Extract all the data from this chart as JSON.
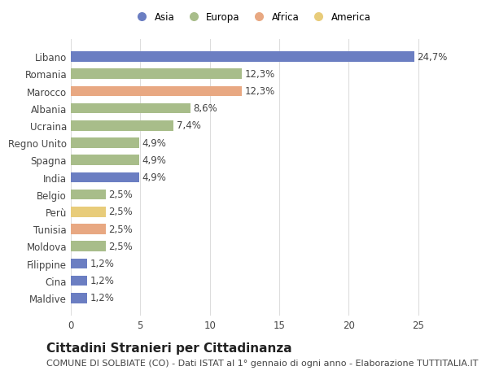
{
  "categories": [
    "Libano",
    "Romania",
    "Marocco",
    "Albania",
    "Ucraina",
    "Regno Unito",
    "Spagna",
    "India",
    "Belgio",
    "Perù",
    "Tunisia",
    "Moldova",
    "Filippine",
    "Cina",
    "Maldive"
  ],
  "values": [
    24.7,
    12.3,
    12.3,
    8.6,
    7.4,
    4.9,
    4.9,
    4.9,
    2.5,
    2.5,
    2.5,
    2.5,
    1.2,
    1.2,
    1.2
  ],
  "labels": [
    "24,7%",
    "12,3%",
    "12,3%",
    "8,6%",
    "7,4%",
    "4,9%",
    "4,9%",
    "4,9%",
    "2,5%",
    "2,5%",
    "2,5%",
    "2,5%",
    "1,2%",
    "1,2%",
    "1,2%"
  ],
  "continents": [
    "Asia",
    "Europa",
    "Africa",
    "Europa",
    "Europa",
    "Europa",
    "Europa",
    "Asia",
    "Europa",
    "America",
    "Africa",
    "Europa",
    "Asia",
    "Asia",
    "Asia"
  ],
  "continent_colors": {
    "Asia": "#6b7ec2",
    "Europa": "#a8bd8a",
    "Africa": "#e8a882",
    "America": "#e8cc7a"
  },
  "legend_entries": [
    "Asia",
    "Europa",
    "Africa",
    "America"
  ],
  "title": "Cittadini Stranieri per Cittadinanza",
  "subtitle": "COMUNE DI SOLBIATE (CO) - Dati ISTAT al 1° gennaio di ogni anno - Elaborazione TUTTITALIA.IT",
  "xlim": [
    0,
    26
  ],
  "xticks": [
    0,
    5,
    10,
    15,
    20,
    25
  ],
  "background_color": "#ffffff",
  "grid_color": "#dddddd",
  "bar_height": 0.6,
  "label_fontsize": 8.5,
  "tick_fontsize": 8.5,
  "title_fontsize": 11,
  "subtitle_fontsize": 8
}
